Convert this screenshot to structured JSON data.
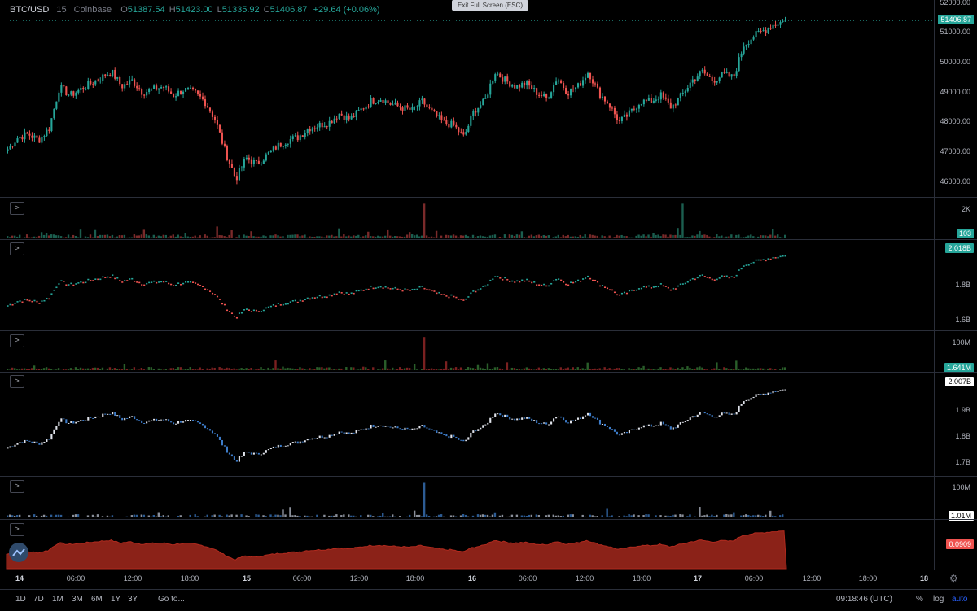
{
  "legend": {
    "symbol": "BTC/USD",
    "interval": "15",
    "exchange": "Coinbase",
    "open_label": "O",
    "open": "51387.54",
    "high_label": "H",
    "high": "51423.00",
    "low_label": "L",
    "low": "51335.92",
    "close_label": "C",
    "close": "51406.87",
    "change": "+29.64 (+0.06%)"
  },
  "exit_fullscreen_label": "Exit Full Screen (ESC)",
  "collapse_glyph": ">",
  "price_axis": {
    "ticks": [
      "52000.00",
      "51000.00",
      "50000.00",
      "49000.00",
      "48000.00",
      "47000.00",
      "46000.00"
    ],
    "ticks_values": [
      52000,
      51000,
      50000,
      49000,
      48000,
      47000,
      46000
    ],
    "last": "51406.87",
    "last_value": 51406.87,
    "range": [
      45500,
      52100
    ]
  },
  "volume_axis": {
    "ticks": [
      "2K"
    ],
    "last": "103"
  },
  "ind1_axis": {
    "ticks": [
      "1.8B",
      "1.6B"
    ],
    "last": "2.018B"
  },
  "ind1_vol_axis": {
    "ticks": [
      "100M"
    ],
    "last": "1.641M"
  },
  "ind2_axis": {
    "ticks": [
      "1.9B",
      "1.8B",
      "1.7B"
    ],
    "last": "2.007B"
  },
  "ind2_vol_axis": {
    "ticks": [
      "100M"
    ],
    "last": "1.01M"
  },
  "area_axis": {
    "last": "0.0909"
  },
  "colors": {
    "up": "#26a69a",
    "down": "#ef5350",
    "blue": "#3d7cc9",
    "white": "#e0e3eb",
    "area": "#8b2218",
    "area_line": "#b12a1e",
    "badge_red": "#ef5350"
  },
  "time_axis": {
    "labels": [
      {
        "text": "14",
        "bold": true
      },
      {
        "text": "06:00"
      },
      {
        "text": "12:00"
      },
      {
        "text": "18:00"
      },
      {
        "text": "15",
        "bold": true
      },
      {
        "text": "06:00"
      },
      {
        "text": "12:00"
      },
      {
        "text": "18:00"
      },
      {
        "text": "16",
        "bold": true
      },
      {
        "text": "06:00"
      },
      {
        "text": "12:00"
      },
      {
        "text": "18:00"
      },
      {
        "text": "17",
        "bold": true
      },
      {
        "text": "06:00"
      },
      {
        "text": "12:00"
      },
      {
        "text": "18:00"
      },
      {
        "text": "18",
        "bold": true
      }
    ]
  },
  "bottom_toolbar": {
    "ranges": [
      "1D",
      "7D",
      "1M",
      "3M",
      "6M",
      "1Y",
      "3Y"
    ],
    "goto": "Go to...",
    "clock": "09:18:46 (UTC)",
    "percent": "%",
    "log": "log",
    "auto": "auto"
  },
  "icons": {
    "logo": "tradingview-logo-icon",
    "settings": "gear-icon"
  },
  "chart_data": {
    "type": "candlestick",
    "ylim": [
      45500,
      52100
    ],
    "x_range": [
      "14 00:00",
      "17 09:15"
    ],
    "close_path": [
      47100,
      47500,
      47600,
      47400,
      47800,
      49200,
      48900,
      49100,
      49300,
      49500,
      49700,
      49200,
      49400,
      49000,
      49100,
      49200,
      48900,
      49100,
      49000,
      48700,
      48100,
      47000,
      46100,
      46800,
      46600,
      46900,
      47200,
      47400,
      47500,
      47800,
      47900,
      48000,
      48300,
      48100,
      48400,
      48700,
      48800,
      48600,
      48500,
      48400,
      48700,
      48300,
      48000,
      47900,
      47500,
      48400,
      48700,
      49700,
      49400,
      49200,
      49300,
      49000,
      48800,
      49500,
      49000,
      49200,
      49700,
      49000,
      48600,
      48000,
      48300,
      48700,
      48700,
      48900,
      48500,
      48900,
      49400,
      49700,
      49400,
      49600,
      49500,
      50600,
      50900,
      51100,
      51300,
      51406.87
    ]
  }
}
